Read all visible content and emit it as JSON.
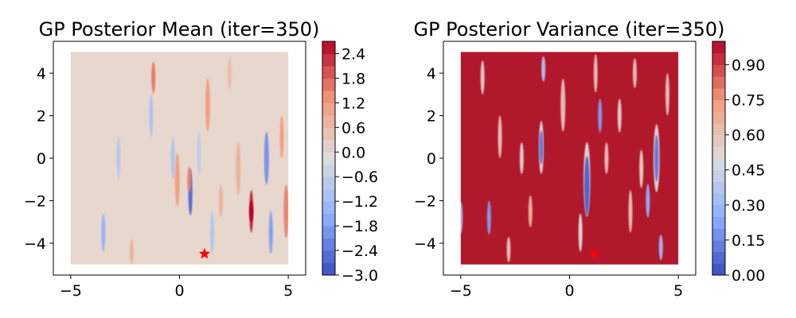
{
  "chart_data": [
    {
      "type": "heatmap",
      "title": "GP Posterior Mean (iter=350)",
      "xlabel": "",
      "ylabel": "",
      "xlim": [
        -5.8,
        5.8
      ],
      "ylim": [
        -5.5,
        5.5
      ],
      "data_extent": {
        "x": [
          -5,
          5
        ],
        "y": [
          -5,
          5
        ]
      },
      "x_ticks": [
        {
          "v": -5,
          "label": "−5"
        },
        {
          "v": 0,
          "label": "0"
        },
        {
          "v": 5,
          "label": "5"
        }
      ],
      "y_ticks": [
        {
          "v": 4,
          "label": "4"
        },
        {
          "v": 2,
          "label": "2"
        },
        {
          "v": 0,
          "label": "0"
        },
        {
          "v": -2,
          "label": "−2"
        },
        {
          "v": -4,
          "label": "−4"
        }
      ],
      "background_color": "#e8d7cd",
      "colormap": "coolwarm",
      "colorbar": {
        "min": -3.0,
        "max": 2.7,
        "levels": 19,
        "ticks": [
          {
            "v": 2.4,
            "label": "2.4"
          },
          {
            "v": 1.8,
            "label": "1.8"
          },
          {
            "v": 1.2,
            "label": "1.2"
          },
          {
            "v": 0.6,
            "label": "0.6"
          },
          {
            "v": 0.0,
            "label": "0.0"
          },
          {
            "v": -0.6,
            "label": "−0.6"
          },
          {
            "v": -1.2,
            "label": "−1.2"
          },
          {
            "v": -1.8,
            "label": "−1.8"
          },
          {
            "v": -2.4,
            "label": "−2.4"
          },
          {
            "v": -3.0,
            "label": "−3.0"
          }
        ]
      },
      "streaks": [
        {
          "x": -1.2,
          "y": 3.8,
          "h": 1.5,
          "v": 1.6
        },
        {
          "x": -0.1,
          "y": -1.0,
          "h": 2.5,
          "v": 1.2
        },
        {
          "x": 0.5,
          "y": -1.6,
          "h": 2.2,
          "v": -2.6
        },
        {
          "x": 0.45,
          "y": -1.0,
          "h": 1.2,
          "v": 1.5
        },
        {
          "x": 3.3,
          "y": -2.5,
          "h": 2.0,
          "v": 2.4
        },
        {
          "x": 3.3,
          "y": -2.5,
          "h": 1.0,
          "v": 2.7
        },
        {
          "x": 4.0,
          "y": 0.0,
          "h": 2.5,
          "v": -2.0
        },
        {
          "x": 4.2,
          "y": -3.5,
          "h": 2.0,
          "v": -1.8
        },
        {
          "x": 4.9,
          "y": -2.5,
          "h": 2.5,
          "v": 1.5
        },
        {
          "x": 4.7,
          "y": 1.0,
          "h": 2.0,
          "v": 1.2
        },
        {
          "x": 1.3,
          "y": 2.5,
          "h": 2.5,
          "v": 1.2
        },
        {
          "x": -3.5,
          "y": -3.5,
          "h": 1.8,
          "v": -1.5
        },
        {
          "x": -2.2,
          "y": -4.4,
          "h": 1.2,
          "v": 0.8
        },
        {
          "x": 2.7,
          "y": -0.5,
          "h": 2.5,
          "v": 0.8
        },
        {
          "x": 2.3,
          "y": 4.0,
          "h": 1.5,
          "v": 0.6
        },
        {
          "x": -0.3,
          "y": 0.0,
          "h": 2.0,
          "v": -1.0
        },
        {
          "x": -1.3,
          "y": 2.0,
          "h": 2.0,
          "v": -1.0
        },
        {
          "x": 1.9,
          "y": -2.0,
          "h": 1.5,
          "v": 0.8
        },
        {
          "x": -2.8,
          "y": 0.0,
          "h": 2.0,
          "v": -0.8
        },
        {
          "x": 1.5,
          "y": -3.5,
          "h": 2.0,
          "v": -0.9
        },
        {
          "x": 0.9,
          "y": 0.2,
          "h": 2.0,
          "v": -0.7
        }
      ],
      "best_point": {
        "x": 1.15,
        "y": -4.5,
        "color": "#ff0000"
      }
    },
    {
      "type": "heatmap",
      "title": "GP Posterior Variance (iter=350)",
      "xlabel": "",
      "ylabel": "",
      "xlim": [
        -5.8,
        5.8
      ],
      "ylim": [
        -5.5,
        5.5
      ],
      "data_extent": {
        "x": [
          -5,
          5
        ],
        "y": [
          -5,
          5
        ]
      },
      "x_ticks": [
        {
          "v": -5,
          "label": "−5"
        },
        {
          "v": 0,
          "label": "0"
        },
        {
          "v": 5,
          "label": "5"
        }
      ],
      "y_ticks": [
        {
          "v": 4,
          "label": "4"
        },
        {
          "v": 2,
          "label": "2"
        },
        {
          "v": 0,
          "label": "0"
        },
        {
          "v": -2,
          "label": "−2"
        },
        {
          "v": -4,
          "label": "−4"
        }
      ],
      "background_color": "#b2182b",
      "colormap": "coolwarm",
      "colorbar": {
        "min": 0.0,
        "max": 1.0,
        "levels": 20,
        "ticks": [
          {
            "v": 0.9,
            "label": "0.90"
          },
          {
            "v": 0.75,
            "label": "0.75"
          },
          {
            "v": 0.6,
            "label": "0.60"
          },
          {
            "v": 0.45,
            "label": "0.45"
          },
          {
            "v": 0.3,
            "label": "0.30"
          },
          {
            "v": 0.15,
            "label": "0.15"
          },
          {
            "v": 0.0,
            "label": "0.00"
          }
        ]
      },
      "streaks": [
        {
          "x": -1.2,
          "y": 4.2,
          "h": 1.2,
          "v": 0.35
        },
        {
          "x": -1.3,
          "y": 0.5,
          "h": 2.5,
          "v": 0.5
        },
        {
          "x": -1.3,
          "y": 0.5,
          "h": 1.6,
          "v": 0.1
        },
        {
          "x": 0.8,
          "y": -1.0,
          "h": 3.5,
          "v": 0.5
        },
        {
          "x": 0.8,
          "y": -1.3,
          "h": 2.8,
          "v": 0.05
        },
        {
          "x": 1.4,
          "y": 2.0,
          "h": 1.6,
          "v": 0.2
        },
        {
          "x": 4.0,
          "y": 0.0,
          "h": 3.2,
          "v": 0.5
        },
        {
          "x": 4.0,
          "y": 0.0,
          "h": 2.2,
          "v": 0.1
        },
        {
          "x": 3.6,
          "y": -2.0,
          "h": 1.6,
          "v": 0.25
        },
        {
          "x": 4.2,
          "y": -4.2,
          "h": 1.2,
          "v": 0.3
        },
        {
          "x": -3.7,
          "y": -2.8,
          "h": 1.6,
          "v": 0.2
        },
        {
          "x": -5.0,
          "y": -2.8,
          "h": 1.5,
          "v": 0.3
        },
        {
          "x": -3.2,
          "y": 1.0,
          "h": 2.0,
          "v": 0.6
        },
        {
          "x": -2.2,
          "y": 0.0,
          "h": 1.5,
          "v": 0.55
        },
        {
          "x": -0.3,
          "y": 2.5,
          "h": 2.5,
          "v": 0.6
        },
        {
          "x": 0.5,
          "y": -3.5,
          "h": 1.8,
          "v": 0.5
        },
        {
          "x": 1.7,
          "y": 0.0,
          "h": 1.5,
          "v": 0.6
        },
        {
          "x": 2.3,
          "y": 2.0,
          "h": 1.6,
          "v": 0.55
        },
        {
          "x": 2.8,
          "y": -2.5,
          "h": 2.0,
          "v": 0.6
        },
        {
          "x": 3.3,
          "y": -0.5,
          "h": 1.8,
          "v": 0.55
        },
        {
          "x": 4.5,
          "y": 3.0,
          "h": 2.0,
          "v": 0.6
        },
        {
          "x": -4.0,
          "y": 3.8,
          "h": 1.6,
          "v": 0.55
        },
        {
          "x": -2.8,
          "y": -4.3,
          "h": 1.2,
          "v": 0.6
        },
        {
          "x": 1.2,
          "y": 4.0,
          "h": 1.8,
          "v": 0.6
        },
        {
          "x": -1.8,
          "y": -2.5,
          "h": 1.5,
          "v": 0.65
        },
        {
          "x": 3.0,
          "y": 4.0,
          "h": 1.4,
          "v": 0.6
        }
      ],
      "best_point": {
        "x": 1.15,
        "y": -4.5,
        "color": "#ff0000"
      }
    }
  ]
}
